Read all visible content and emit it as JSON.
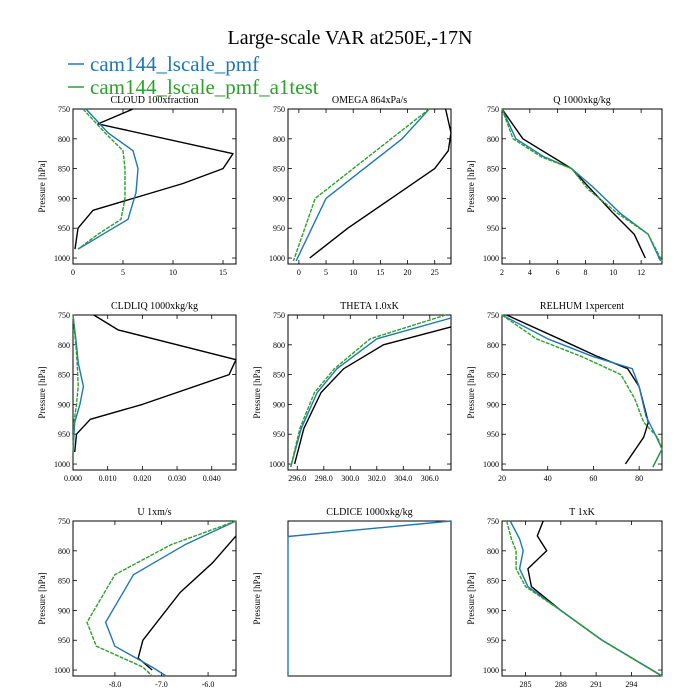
{
  "page": {
    "title": "Large-scale VAR at250E,-17N",
    "legend": [
      {
        "name": "cam144_lscale_pmf",
        "color": "#1f77b4"
      },
      {
        "name": "cam144_lscale_pmf_a1test",
        "color": "#2ca02c"
      }
    ]
  },
  "chart_data": [
    {
      "type": "line",
      "title": "CLOUD  100xfraction",
      "ylabel": "Pressure [hPa]",
      "xlim": [
        0,
        16.3
      ],
      "ylim": [
        750,
        1010
      ],
      "xticks": [
        0,
        5,
        10,
        15
      ],
      "xtick_labels": [
        "0",
        "5",
        "10",
        "15"
      ],
      "yticks": [
        750,
        800,
        850,
        900,
        950,
        1000
      ],
      "ytick_labels": [
        "750",
        "800",
        "850",
        "900",
        "950",
        "1000"
      ],
      "series": [
        {
          "name": "black",
          "color": "#000000",
          "x": [
            6.0,
            2.5,
            16.0,
            15.0,
            11.0,
            2.0,
            0.5,
            0.2
          ],
          "y": [
            750,
            775,
            825,
            850,
            875,
            920,
            950,
            985
          ]
        },
        {
          "name": "cam144_lscale_pmf",
          "color": "#1f77b4",
          "x": [
            1.3,
            3.5,
            6.0,
            6.5,
            6.3,
            5.5,
            3.0,
            0.5
          ],
          "y": [
            750,
            790,
            820,
            850,
            890,
            935,
            960,
            985
          ]
        },
        {
          "name": "cam144_lscale_pmf_a1test",
          "color": "#2ca02c",
          "x": [
            1.0,
            3.2,
            5.0,
            5.2,
            5.2,
            4.8,
            2.5,
            0.5
          ],
          "y": [
            750,
            790,
            820,
            850,
            900,
            935,
            960,
            985
          ]
        }
      ]
    },
    {
      "type": "line",
      "title": "OMEGA  864xPa/s",
      "ylabel": "",
      "xlim": [
        -2,
        28
      ],
      "ylim": [
        750,
        1010
      ],
      "xticks": [
        0,
        5,
        10,
        15,
        20,
        25
      ],
      "xtick_labels": [
        "0",
        "5",
        "10",
        "15",
        "20",
        "25"
      ],
      "yticks": [
        750,
        800,
        850,
        900,
        950,
        1000
      ],
      "ytick_labels": [
        "750",
        "800",
        "850",
        "900",
        "950",
        "1000"
      ],
      "series": [
        {
          "name": "black",
          "color": "#000000",
          "x": [
            27.0,
            28.0,
            27.5,
            25.0,
            17.0,
            9.0,
            2.0
          ],
          "y": [
            750,
            790,
            820,
            850,
            900,
            950,
            1000
          ]
        },
        {
          "name": "cam144_lscale_pmf",
          "color": "#1f77b4",
          "x": [
            24.0,
            19.0,
            12.0,
            5.0,
            -0.5
          ],
          "y": [
            750,
            800,
            850,
            900,
            1005
          ]
        },
        {
          "name": "cam144_lscale_pmf_a1test",
          "color": "#2ca02c",
          "x": [
            24.0,
            17.0,
            10.0,
            3.0,
            -1.0
          ],
          "y": [
            750,
            800,
            850,
            900,
            1005
          ]
        }
      ]
    },
    {
      "type": "line",
      "title": "Q  1000xkg/kg",
      "ylabel": "Pressure [hPa]",
      "xlim": [
        2,
        13.5
      ],
      "ylim": [
        750,
        1010
      ],
      "xticks": [
        2,
        4,
        6,
        8,
        10,
        12
      ],
      "xtick_labels": [
        "2",
        "4",
        "6",
        "8",
        "10",
        "12"
      ],
      "yticks": [
        750,
        800,
        850,
        900,
        950,
        1000
      ],
      "ytick_labels": [
        "750",
        "800",
        "850",
        "900",
        "950",
        "1000"
      ],
      "series": [
        {
          "name": "black",
          "color": "#000000",
          "x": [
            2.0,
            3.5,
            7.0,
            10.0,
            11.5,
            12.3
          ],
          "y": [
            750,
            800,
            850,
            925,
            960,
            1000
          ]
        },
        {
          "name": "cam144_lscale_pmf",
          "color": "#1f77b4",
          "x": [
            2.0,
            3.0,
            5.0,
            7.0,
            8.5,
            10.5,
            12.5,
            13.4
          ],
          "y": [
            750,
            800,
            830,
            850,
            880,
            925,
            960,
            1005
          ]
        },
        {
          "name": "cam144_lscale_pmf_a1test",
          "color": "#2ca02c",
          "x": [
            2.0,
            2.8,
            4.8,
            7.0,
            8.2,
            10.3,
            12.5,
            13.5
          ],
          "y": [
            750,
            800,
            830,
            850,
            885,
            925,
            960,
            1005
          ]
        }
      ]
    },
    {
      "type": "line",
      "title": "CLDLIQ  1000xkg/kg",
      "ylabel": "Pressure [hPa]",
      "xlim": [
        0,
        0.047
      ],
      "ylim": [
        750,
        1010
      ],
      "xticks": [
        0,
        0.01,
        0.02,
        0.03,
        0.04
      ],
      "xtick_labels": [
        "0.000",
        "0.010",
        "0.020",
        "0.030",
        "0.040"
      ],
      "yticks": [
        750,
        800,
        850,
        900,
        950,
        1000
      ],
      "ytick_labels": [
        "750",
        "800",
        "850",
        "900",
        "950",
        "1000"
      ],
      "series": [
        {
          "name": "black",
          "color": "#000000",
          "x": [
            0.006,
            0.013,
            0.047,
            0.045,
            0.02,
            0.005,
            0.001,
            0.0005
          ],
          "y": [
            750,
            775,
            825,
            850,
            900,
            925,
            950,
            980
          ]
        },
        {
          "name": "cam144_lscale_pmf",
          "color": "#1f77b4",
          "x": [
            0.0,
            0.001,
            0.0015,
            0.003,
            0.002,
            0.0005,
            0.0
          ],
          "y": [
            750,
            800,
            830,
            870,
            900,
            930,
            980
          ]
        },
        {
          "name": "cam144_lscale_pmf_a1test",
          "color": "#2ca02c",
          "x": [
            0.0,
            0.0008,
            0.0012,
            0.0015,
            0.001,
            0.0003,
            0.0
          ],
          "y": [
            750,
            800,
            830,
            870,
            900,
            930,
            980
          ]
        }
      ]
    },
    {
      "type": "line",
      "title": "THETA  1.0xK",
      "ylabel": "Pressure [hPa]",
      "xlim": [
        295.3,
        307.6
      ],
      "ylim": [
        750,
        1010
      ],
      "xticks": [
        296,
        298,
        300,
        302,
        304,
        306
      ],
      "xtick_labels": [
        "296.0",
        "298.0",
        "300.0",
        "302.0",
        "304.0",
        "306.0"
      ],
      "yticks": [
        750,
        800,
        850,
        900,
        950,
        1000
      ],
      "ytick_labels": [
        "750",
        "800",
        "850",
        "900",
        "950",
        "1000"
      ],
      "series": [
        {
          "name": "black",
          "color": "#000000",
          "x": [
            307.6,
            302.5,
            299.5,
            297.8,
            296.5,
            295.8
          ],
          "y": [
            770,
            800,
            840,
            880,
            940,
            1000
          ]
        },
        {
          "name": "cam144_lscale_pmf",
          "color": "#1f77b4",
          "x": [
            307.6,
            302.0,
            299.0,
            297.5,
            296.3,
            295.5
          ],
          "y": [
            755,
            790,
            840,
            880,
            940,
            1005
          ]
        },
        {
          "name": "cam144_lscale_pmf_a1test",
          "color": "#2ca02c",
          "x": [
            307.2,
            301.5,
            298.8,
            297.3,
            296.2,
            295.5
          ],
          "y": [
            750,
            790,
            840,
            880,
            940,
            1005
          ]
        }
      ]
    },
    {
      "type": "line",
      "title": "RELHUM  1xpercent",
      "ylabel": "Pressure [hPa]",
      "xlim": [
        20,
        90
      ],
      "ylim": [
        750,
        1010
      ],
      "xticks": [
        20,
        40,
        60,
        80
      ],
      "xtick_labels": [
        "20",
        "40",
        "60",
        "80"
      ],
      "yticks": [
        750,
        800,
        850,
        900,
        950,
        1000
      ],
      "ytick_labels": [
        "750",
        "800",
        "850",
        "900",
        "950",
        "1000"
      ],
      "series": [
        {
          "name": "black",
          "color": "#000000",
          "x": [
            22.0,
            45.0,
            62.0,
            75.0,
            80.0,
            84.0,
            82.0,
            74.0
          ],
          "y": [
            750,
            790,
            820,
            840,
            870,
            930,
            955,
            1000
          ]
        },
        {
          "name": "cam144_lscale_pmf",
          "color": "#1f77b4",
          "x": [
            20.0,
            40.0,
            60.0,
            77.0,
            80.0,
            83.0,
            87.0,
            90.0,
            86.0
          ],
          "y": [
            750,
            790,
            820,
            840,
            870,
            920,
            950,
            975,
            1005
          ]
        },
        {
          "name": "cam144_lscale_pmf_a1test",
          "color": "#2ca02c",
          "x": [
            20.0,
            35.0,
            55.0,
            72.0,
            78.0,
            82.0,
            88.0,
            90.0,
            86.0
          ],
          "y": [
            750,
            790,
            820,
            850,
            890,
            930,
            955,
            975,
            1005
          ]
        }
      ]
    },
    {
      "type": "line",
      "title": "U  1xm/s",
      "ylabel": "Pressure [hPa]",
      "xlim": [
        -8.9,
        -5.4
      ],
      "ylim": [
        750,
        1010
      ],
      "xticks": [
        -8,
        -7,
        -6
      ],
      "xtick_labels": [
        "-8.0",
        "-7.0",
        "-6.0"
      ],
      "yticks": [
        750,
        800,
        850,
        900,
        950,
        1000
      ],
      "ytick_labels": [
        "750",
        "800",
        "850",
        "900",
        "950",
        "1000"
      ],
      "series": [
        {
          "name": "black",
          "color": "#000000",
          "x": [
            -5.4,
            -5.9,
            -6.6,
            -7.4,
            -7.5,
            -7.2
          ],
          "y": [
            775,
            820,
            870,
            950,
            980,
            1000
          ]
        },
        {
          "name": "cam144_lscale_pmf",
          "color": "#1f77b4",
          "x": [
            -5.4,
            -6.5,
            -7.6,
            -8.2,
            -8.0,
            -7.2,
            -6.9
          ],
          "y": [
            750,
            790,
            840,
            920,
            960,
            995,
            1010
          ]
        },
        {
          "name": "cam144_lscale_pmf_a1test",
          "color": "#2ca02c",
          "x": [
            -5.4,
            -6.8,
            -8.0,
            -8.6,
            -8.4,
            -7.4,
            -7.2
          ],
          "y": [
            750,
            790,
            840,
            920,
            960,
            995,
            1010
          ]
        }
      ]
    },
    {
      "type": "line",
      "title": "CLDICE  1000xkg/kg",
      "ylabel": "Pressure [hPa]",
      "xlim": [
        0,
        1
      ],
      "ylim": [
        0,
        1
      ],
      "xticks": [],
      "xtick_labels": [],
      "yticks": [],
      "ytick_labels": [],
      "series": [
        {
          "name": "cam144_lscale_pmf",
          "color": "#1f77b4",
          "x": [
            1.0,
            0.0,
            0.0,
            0.0
          ],
          "y": [
            0.0,
            0.1,
            0.11,
            1.0
          ]
        }
      ]
    },
    {
      "type": "line",
      "title": "T  1xK",
      "ylabel": "Pressure [hPa]",
      "xlim": [
        283,
        296.6
      ],
      "ylim": [
        750,
        1010
      ],
      "xticks": [
        285,
        288,
        291,
        294
      ],
      "xtick_labels": [
        "285",
        "288",
        "291",
        "294"
      ],
      "yticks": [
        750,
        800,
        850,
        900,
        950,
        1000
      ],
      "ytick_labels": [
        "750",
        "800",
        "850",
        "900",
        "950",
        "1000"
      ],
      "series": [
        {
          "name": "black",
          "color": "#000000",
          "x": [
            286.5,
            286.0,
            286.8,
            285.2,
            285.5,
            288.0,
            291.5,
            296.6
          ],
          "y": [
            750,
            775,
            800,
            830,
            860,
            900,
            950,
            1010
          ]
        },
        {
          "name": "cam144_lscale_pmf",
          "color": "#1f77b4",
          "x": [
            283.7,
            284.5,
            284.8,
            284.5,
            285.2,
            288.0,
            291.5,
            296.6
          ],
          "y": [
            750,
            780,
            800,
            830,
            860,
            900,
            950,
            1010
          ]
        },
        {
          "name": "cam144_lscale_pmf_a1test",
          "color": "#2ca02c",
          "x": [
            283.4,
            283.8,
            284.2,
            284.2,
            285.0,
            288.0,
            291.5,
            296.6
          ],
          "y": [
            750,
            780,
            800,
            830,
            860,
            900,
            950,
            1010
          ]
        }
      ]
    }
  ]
}
